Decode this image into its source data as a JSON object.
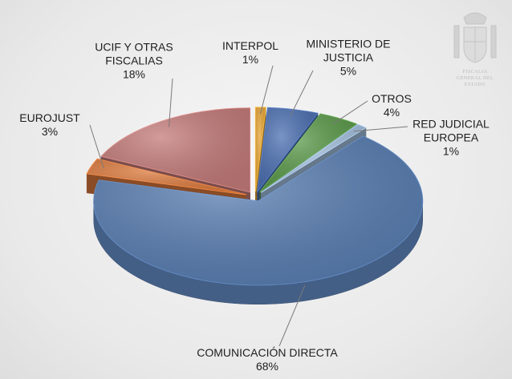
{
  "logo_text": "FISCALIA GENERAL DEL ESTADO",
  "chart_data": {
    "type": "pie",
    "categories": [
      "INTERPOL",
      "MINISTERIO DE JUSTICIA",
      "OTROS",
      "RED JUDICIAL EUROPEA",
      "COMUNICACIÓN DIRECTA",
      "EUROJUST",
      "UCIF Y OTRAS FISCALIAS"
    ],
    "values": [
      1,
      5,
      4,
      1,
      68,
      3,
      18
    ],
    "value_labels": [
      "1%",
      "5%",
      "4%",
      "1%",
      "68%",
      "3%",
      "18%"
    ],
    "colors": [
      "#e8a534",
      "#4c70b2",
      "#5b9a4a",
      "#a5c1e0",
      "#5a7fb3",
      "#dd7b3e",
      "#c47c7a"
    ]
  }
}
